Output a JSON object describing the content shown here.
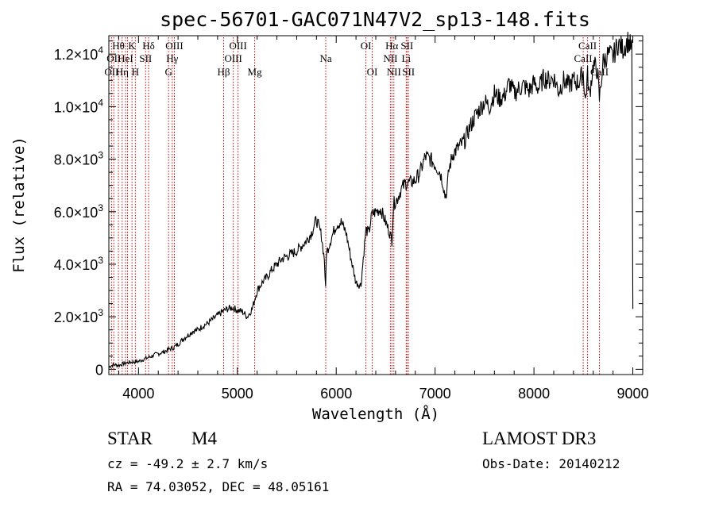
{
  "chart_data": {
    "type": "line",
    "title": "spec-56701-GAC071N47V2_sp13-148.fits",
    "xlabel": "Wavelength (Å)",
    "ylabel": "Flux (relative)",
    "xlim": [
      3700,
      9100
    ],
    "ylim": [
      -200,
      12700
    ],
    "x_ticks": [
      4000,
      5000,
      6000,
      7000,
      8000,
      9000
    ],
    "x_tick_labels": [
      "4000",
      "5000",
      "6000",
      "7000",
      "8000",
      "9000"
    ],
    "y_ticks": [
      0,
      2000,
      4000,
      6000,
      8000,
      10000,
      12000
    ],
    "y_tick_labels": [
      {
        "mant": "0",
        "exp": ""
      },
      {
        "mant": "2.0×10",
        "exp": "3"
      },
      {
        "mant": "4.0×10",
        "exp": "3"
      },
      {
        "mant": "6.0×10",
        "exp": "3"
      },
      {
        "mant": "8.0×10",
        "exp": "3"
      },
      {
        "mant": "1.0×10",
        "exp": "4"
      },
      {
        "mant": "1.2×10",
        "exp": "4"
      }
    ],
    "series": [
      {
        "name": "spectrum",
        "x": [
          3700,
          3750,
          3800,
          3850,
          3900,
          3950,
          4000,
          4050,
          4100,
          4150,
          4200,
          4250,
          4300,
          4350,
          4400,
          4450,
          4500,
          4550,
          4600,
          4650,
          4700,
          4750,
          4800,
          4850,
          4900,
          4950,
          5000,
          5050,
          5100,
          5150,
          5200,
          5250,
          5300,
          5350,
          5400,
          5450,
          5500,
          5550,
          5600,
          5650,
          5700,
          5750,
          5800,
          5850,
          5880,
          5893,
          5900,
          5950,
          6000,
          6050,
          6100,
          6150,
          6200,
          6250,
          6280,
          6300,
          6330,
          6360,
          6400,
          6450,
          6500,
          6540,
          6563,
          6580,
          6620,
          6650,
          6700,
          6750,
          6800,
          6850,
          6900,
          6950,
          7000,
          7050,
          7080,
          7100,
          7120,
          7140,
          7180,
          7250,
          7300,
          7350,
          7400,
          7450,
          7500,
          7550,
          7600,
          7650,
          7700,
          7750,
          7800,
          7850,
          7900,
          7950,
          8000,
          8050,
          8100,
          8150,
          8200,
          8250,
          8300,
          8350,
          8400,
          8450,
          8498,
          8520,
          8542,
          8560,
          8600,
          8640,
          8662,
          8700,
          8750,
          8800,
          8850,
          8900,
          8950,
          8990,
          9000
        ],
        "y": [
          100,
          180,
          150,
          220,
          260,
          280,
          300,
          380,
          450,
          530,
          600,
          650,
          750,
          820,
          950,
          1150,
          1300,
          1450,
          1500,
          1650,
          1750,
          1900,
          2050,
          2200,
          2300,
          2350,
          2250,
          2200,
          2000,
          2300,
          3000,
          3300,
          3500,
          3800,
          4000,
          4200,
          4300,
          4400,
          4500,
          4700,
          4900,
          5200,
          5700,
          5100,
          4200,
          3000,
          4400,
          5000,
          5500,
          5600,
          5200,
          4200,
          3300,
          3200,
          4500,
          5300,
          5200,
          5900,
          6000,
          6100,
          5600,
          5200,
          4900,
          6300,
          6500,
          6800,
          7100,
          7100,
          7200,
          7500,
          8100,
          8000,
          7800,
          7500,
          7100,
          6600,
          6800,
          7600,
          8200,
          8500,
          8700,
          9200,
          9600,
          9900,
          10200,
          10000,
          10500,
          10300,
          10400,
          10900,
          10500,
          10700,
          10800,
          10600,
          10900,
          10700,
          11100,
          11000,
          11100,
          10600,
          11000,
          10800,
          11000,
          10900,
          11300,
          10200,
          11200,
          10400,
          11600,
          11400,
          10300,
          11700,
          12000,
          11900,
          12400,
          12200,
          12500,
          12200,
          2300
        ]
      }
    ],
    "spectral_lines": [
      {
        "wl": 3727,
        "top": "",
        "mid": "",
        "bot": "OII"
      },
      {
        "wl": 3750,
        "top": "",
        "mid": "OII",
        "bot": ""
      },
      {
        "wl": 3797,
        "top": "Hθ",
        "mid": "",
        "bot": ""
      },
      {
        "wl": 3835,
        "top": "",
        "mid": "",
        "bot": "Hη"
      },
      {
        "wl": 3869,
        "top": "",
        "mid": "HeI",
        "bot": ""
      },
      {
        "wl": 3889,
        "top": "",
        "mid": "",
        "bot": ""
      },
      {
        "wl": 3934,
        "top": "K",
        "mid": "",
        "bot": ""
      },
      {
        "wl": 3968,
        "top": "",
        "mid": "",
        "bot": "H"
      },
      {
        "wl": 4072,
        "top": "",
        "mid": "SII",
        "bot": ""
      },
      {
        "wl": 4102,
        "top": "Hδ",
        "mid": "",
        "bot": ""
      },
      {
        "wl": 4304,
        "top": "",
        "mid": "",
        "bot": "G"
      },
      {
        "wl": 4341,
        "top": "",
        "mid": "Hγ",
        "bot": ""
      },
      {
        "wl": 4363,
        "top": "OIII",
        "mid": "",
        "bot": ""
      },
      {
        "wl": 4861,
        "top": "",
        "mid": "",
        "bot": "Hβ"
      },
      {
        "wl": 4959,
        "top": "",
        "mid": "OIII",
        "bot": ""
      },
      {
        "wl": 5007,
        "top": "OIII",
        "mid": "",
        "bot": ""
      },
      {
        "wl": 5175,
        "top": "",
        "mid": "",
        "bot": "Mg"
      },
      {
        "wl": 5894,
        "top": "",
        "mid": "Na",
        "bot": ""
      },
      {
        "wl": 6300,
        "top": "OI",
        "mid": "",
        "bot": ""
      },
      {
        "wl": 6364,
        "top": "",
        "mid": "",
        "bot": "OI"
      },
      {
        "wl": 6548,
        "top": "",
        "mid": "NII",
        "bot": ""
      },
      {
        "wl": 6563,
        "top": "Hα",
        "mid": "",
        "bot": ""
      },
      {
        "wl": 6583,
        "top": "",
        "mid": "",
        "bot": "NII"
      },
      {
        "wl": 6708,
        "top": "",
        "mid": "Li",
        "bot": ""
      },
      {
        "wl": 6716,
        "top": "SII",
        "mid": "",
        "bot": ""
      },
      {
        "wl": 6731,
        "top": "",
        "mid": "",
        "bot": "SII"
      },
      {
        "wl": 8498,
        "top": "",
        "mid": "CaII",
        "bot": ""
      },
      {
        "wl": 8542,
        "top": "CaII",
        "mid": "",
        "bot": ""
      },
      {
        "wl": 8662,
        "top": "",
        "mid": "",
        "bot": "CaII"
      }
    ],
    "line_color": "#cc0000",
    "grid": false
  },
  "info": {
    "type_label": "STAR",
    "subclass": "M4",
    "survey": "LAMOST DR3",
    "redshift": "cz = -49.2 ± 2.7 km/s",
    "obs_date": "Obs-Date: 20140212",
    "coords": "RA =  74.03052, DEC =  48.05161"
  }
}
